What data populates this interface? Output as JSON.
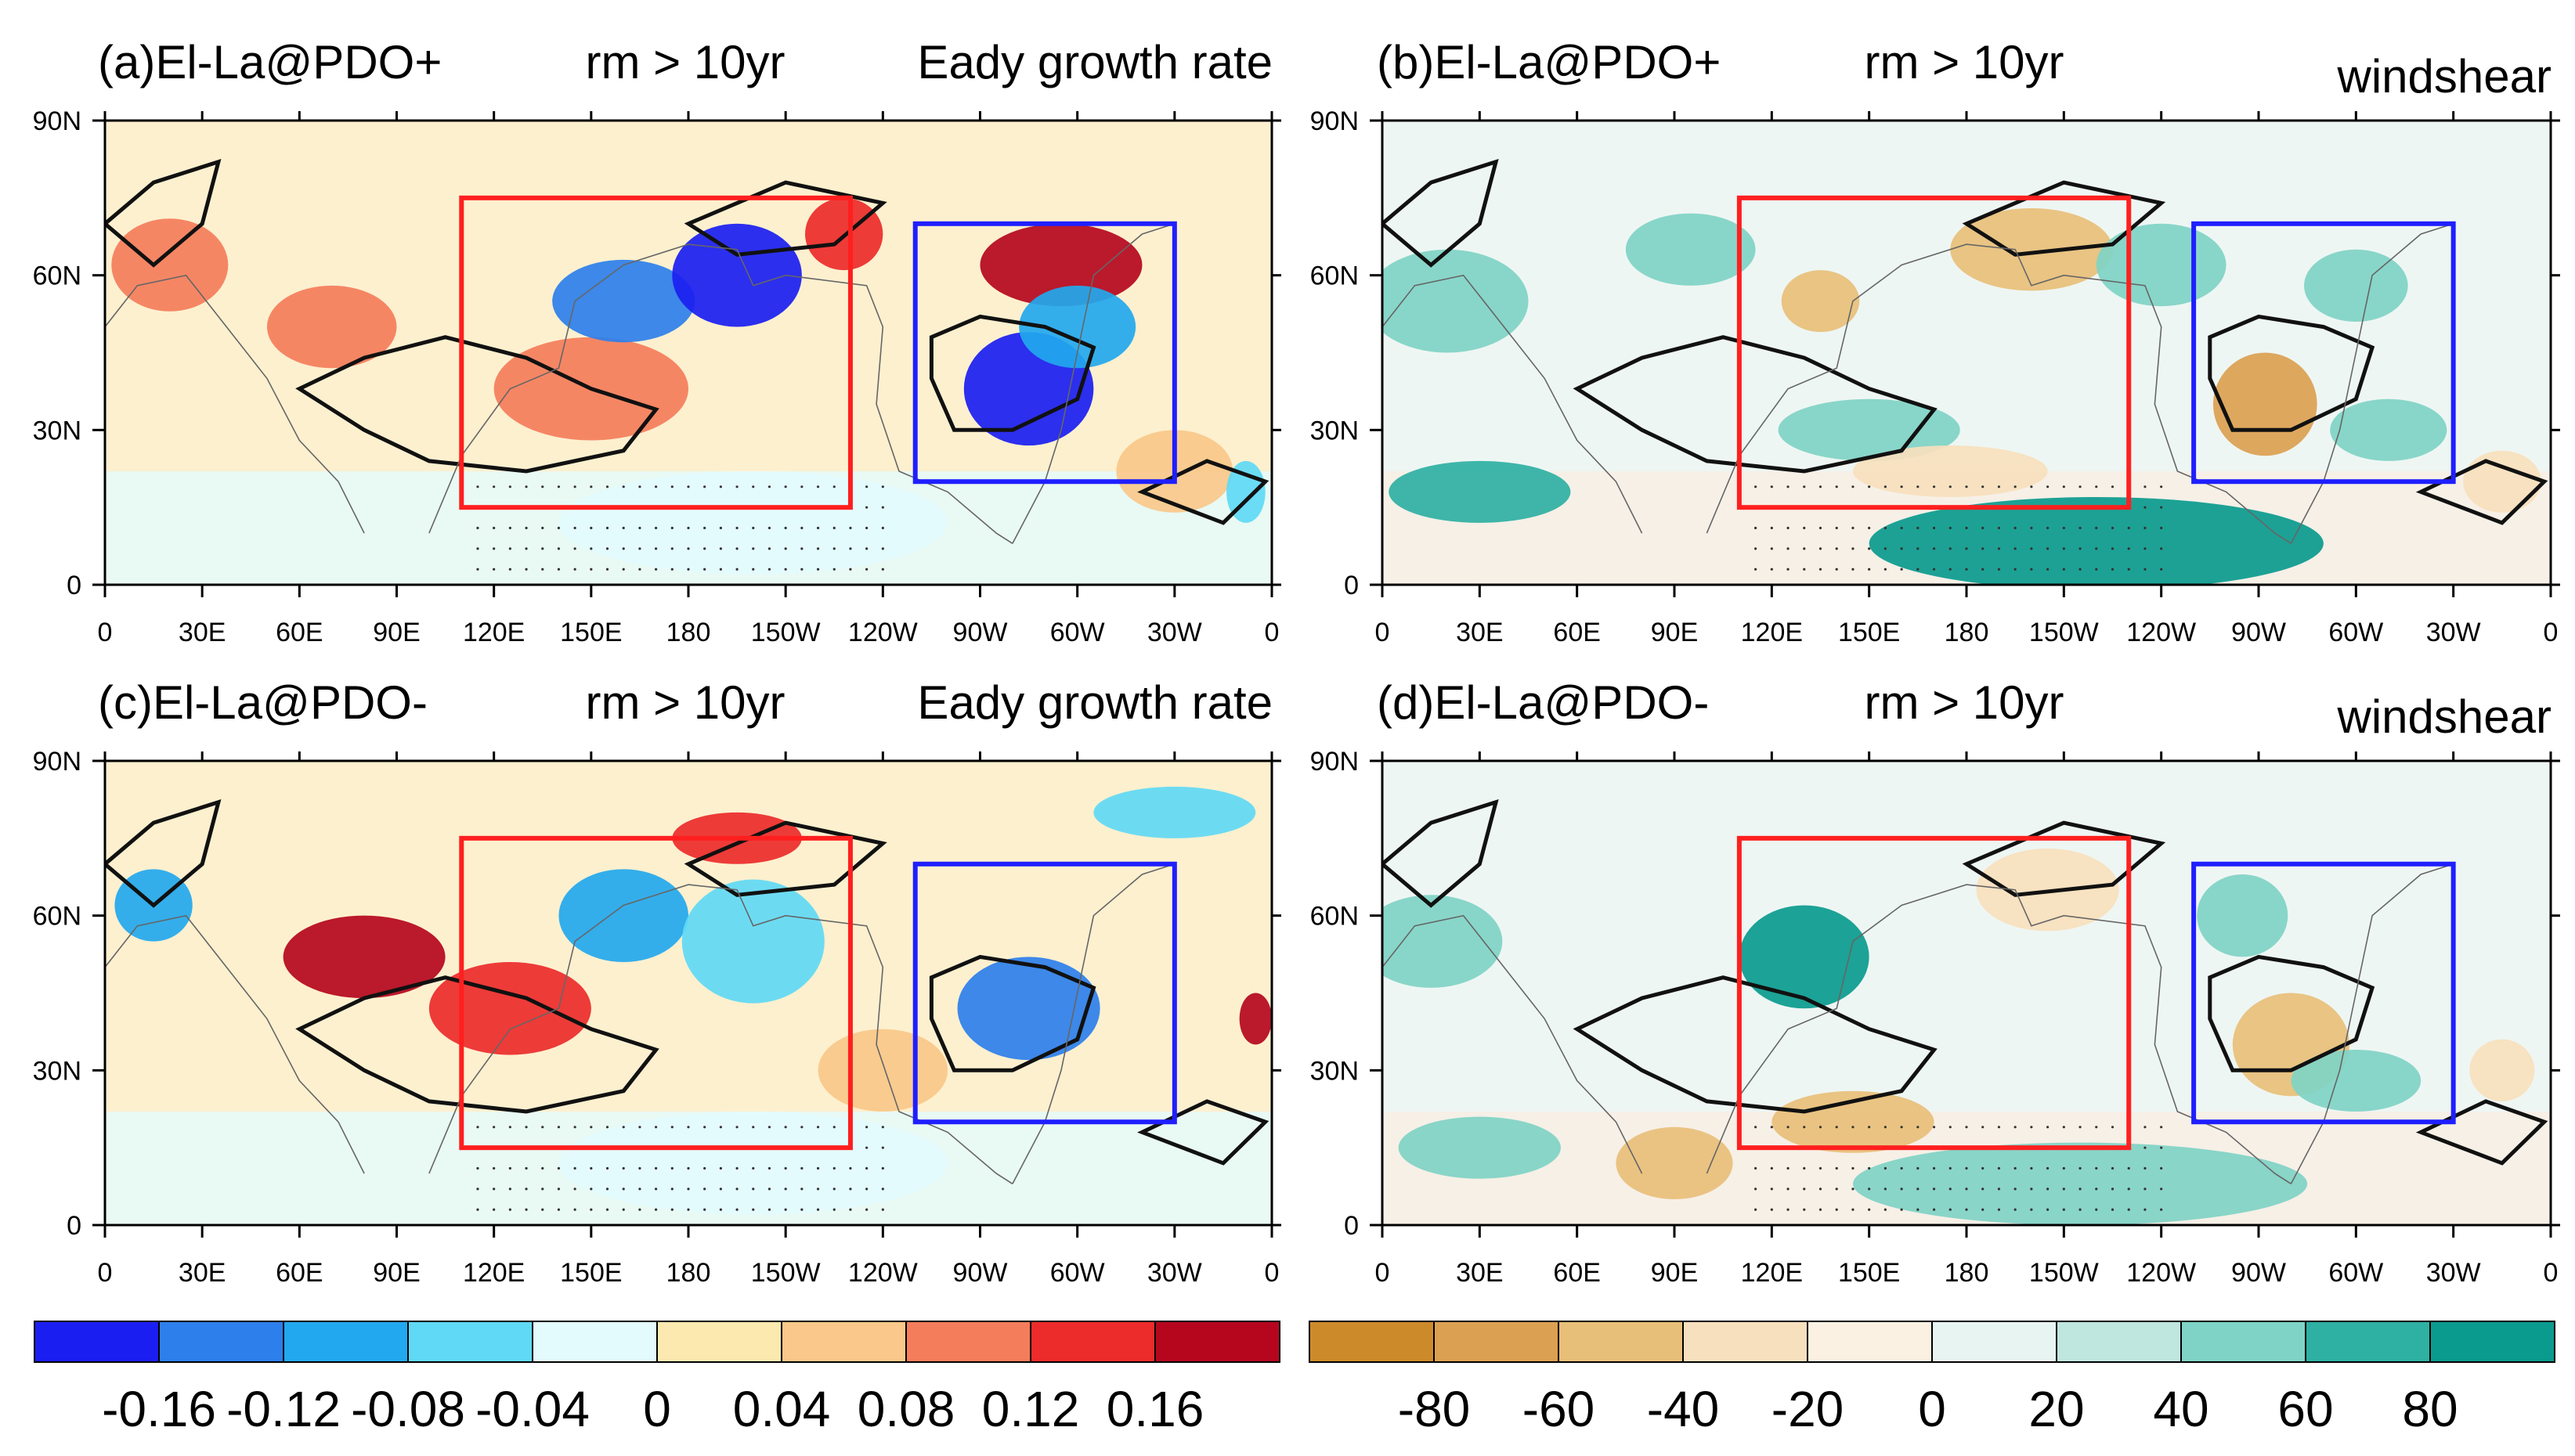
{
  "figure": {
    "panels": [
      {
        "id": "a",
        "title_left": "(a)El-La@PDO+",
        "title_center": "rm > 10yr",
        "title_right": "Eady growth rate",
        "variable": "eady",
        "fields": [
          {
            "lon": 20,
            "lat": 62,
            "rx": 18,
            "ry": 9,
            "v": 0.1
          },
          {
            "lon": 70,
            "lat": 50,
            "rx": 20,
            "ry": 8,
            "v": 0.08
          },
          {
            "lon": 150,
            "lat": 38,
            "rx": 30,
            "ry": 10,
            "v": 0.1
          },
          {
            "lon": 160,
            "lat": 55,
            "rx": 22,
            "ry": 8,
            "v": -0.14
          },
          {
            "lon": 195,
            "lat": 60,
            "rx": 20,
            "ry": 10,
            "v": -0.18
          },
          {
            "lon": 228,
            "lat": 68,
            "rx": 12,
            "ry": 7,
            "v": 0.14
          },
          {
            "lon": 295,
            "lat": 62,
            "rx": 25,
            "ry": 8,
            "v": 0.16
          },
          {
            "lon": 285,
            "lat": 38,
            "rx": 20,
            "ry": 11,
            "v": -0.2
          },
          {
            "lon": 300,
            "lat": 50,
            "rx": 18,
            "ry": 8,
            "v": -0.12
          },
          {
            "lon": 200,
            "lat": 12,
            "rx": 60,
            "ry": 10,
            "v": -0.02
          },
          {
            "lon": 330,
            "lat": 22,
            "rx": 18,
            "ry": 8,
            "v": 0.04
          },
          {
            "lon": 352,
            "lat": 18,
            "rx": 6,
            "ry": 6,
            "v": -0.08
          }
        ]
      },
      {
        "id": "b",
        "title_left": "(b)El-La@PDO+",
        "title_center": "rm > 10yr",
        "title_right": "windshear",
        "variable": "windshear",
        "fields": [
          {
            "lon": 20,
            "lat": 55,
            "rx": 25,
            "ry": 10,
            "v": 40
          },
          {
            "lon": 30,
            "lat": 18,
            "rx": 28,
            "ry": 6,
            "v": 70
          },
          {
            "lon": 95,
            "lat": 65,
            "rx": 20,
            "ry": 7,
            "v": 40
          },
          {
            "lon": 135,
            "lat": 55,
            "rx": 12,
            "ry": 6,
            "v": -60
          },
          {
            "lon": 200,
            "lat": 65,
            "rx": 25,
            "ry": 8,
            "v": -50
          },
          {
            "lon": 150,
            "lat": 30,
            "rx": 28,
            "ry": 6,
            "v": 40
          },
          {
            "lon": 175,
            "lat": 22,
            "rx": 30,
            "ry": 5,
            "v": -40
          },
          {
            "lon": 220,
            "lat": 8,
            "rx": 70,
            "ry": 9,
            "v": 80
          },
          {
            "lon": 240,
            "lat": 62,
            "rx": 20,
            "ry": 8,
            "v": 50
          },
          {
            "lon": 272,
            "lat": 35,
            "rx": 16,
            "ry": 10,
            "v": -70
          },
          {
            "lon": 310,
            "lat": 30,
            "rx": 18,
            "ry": 6,
            "v": 50
          },
          {
            "lon": 300,
            "lat": 58,
            "rx": 16,
            "ry": 7,
            "v": 40
          },
          {
            "lon": 345,
            "lat": 20,
            "rx": 12,
            "ry": 6,
            "v": -40
          }
        ]
      },
      {
        "id": "c",
        "title_left": "(c)El-La@PDO-",
        "title_center": "rm > 10yr",
        "title_right": "Eady growth rate",
        "variable": "eady",
        "fields": [
          {
            "lon": 15,
            "lat": 62,
            "rx": 12,
            "ry": 7,
            "v": -0.12
          },
          {
            "lon": 80,
            "lat": 52,
            "rx": 25,
            "ry": 8,
            "v": 0.16
          },
          {
            "lon": 125,
            "lat": 42,
            "rx": 25,
            "ry": 9,
            "v": 0.14
          },
          {
            "lon": 160,
            "lat": 60,
            "rx": 20,
            "ry": 9,
            "v": -0.1
          },
          {
            "lon": 200,
            "lat": 55,
            "rx": 22,
            "ry": 12,
            "v": -0.08
          },
          {
            "lon": 195,
            "lat": 75,
            "rx": 20,
            "ry": 5,
            "v": 0.12
          },
          {
            "lon": 285,
            "lat": 42,
            "rx": 22,
            "ry": 10,
            "v": -0.14
          },
          {
            "lon": 330,
            "lat": 80,
            "rx": 25,
            "ry": 5,
            "v": -0.08
          },
          {
            "lon": 240,
            "lat": 30,
            "rx": 20,
            "ry": 8,
            "v": 0.06
          },
          {
            "lon": 355,
            "lat": 40,
            "rx": 5,
            "ry": 5,
            "v": 0.16
          },
          {
            "lon": 200,
            "lat": 12,
            "rx": 60,
            "ry": 10,
            "v": -0.02
          }
        ]
      },
      {
        "id": "d",
        "title_left": "(d)El-La@PDO-",
        "title_center": "rm > 10yr",
        "title_right": "windshear",
        "variable": "windshear",
        "fields": [
          {
            "lon": 15,
            "lat": 55,
            "rx": 22,
            "ry": 9,
            "v": 50
          },
          {
            "lon": 30,
            "lat": 15,
            "rx": 25,
            "ry": 6,
            "v": 50
          },
          {
            "lon": 90,
            "lat": 12,
            "rx": 18,
            "ry": 7,
            "v": -60
          },
          {
            "lon": 130,
            "lat": 52,
            "rx": 20,
            "ry": 10,
            "v": 80
          },
          {
            "lon": 145,
            "lat": 20,
            "rx": 25,
            "ry": 6,
            "v": -50
          },
          {
            "lon": 205,
            "lat": 65,
            "rx": 22,
            "ry": 8,
            "v": -40
          },
          {
            "lon": 215,
            "lat": 8,
            "rx": 70,
            "ry": 8,
            "v": 50
          },
          {
            "lon": 265,
            "lat": 60,
            "rx": 14,
            "ry": 8,
            "v": 40
          },
          {
            "lon": 280,
            "lat": 35,
            "rx": 18,
            "ry": 10,
            "v": -60
          },
          {
            "lon": 300,
            "lat": 28,
            "rx": 20,
            "ry": 6,
            "v": 50
          },
          {
            "lon": 345,
            "lat": 30,
            "rx": 10,
            "ry": 6,
            "v": -30
          }
        ]
      }
    ],
    "x_ticks": [
      "0",
      "30E",
      "60E",
      "90E",
      "120E",
      "150E",
      "180",
      "150W",
      "120W",
      "90W",
      "60W",
      "30W",
      "0"
    ],
    "y_ticks": [
      "0",
      "30N",
      "60N",
      "90N"
    ],
    "boxes": [
      {
        "color": "#ff1f1f",
        "lon0": 110,
        "lon1": 230,
        "lat0": 15,
        "lat1": 75
      },
      {
        "color": "#1f1fff",
        "lon0": 250,
        "lon1": 330,
        "lat0": 20,
        "lat1": 70
      }
    ]
  },
  "colorbars": {
    "eady": {
      "labels": [
        "-0.16",
        "-0.12",
        "-0.08",
        "-0.04",
        "0",
        "0.04",
        "0.08",
        "0.12",
        "0.16"
      ],
      "colors": [
        "#1a1ef0",
        "#2d7fec",
        "#22a8ee",
        "#5fd9f5",
        "#e3fbfd",
        "#fbe9b0",
        "#f9c88a",
        "#f47d5b",
        "#ec2b2b",
        "#b5061e"
      ]
    },
    "windshear": {
      "labels": [
        "-80",
        "-60",
        "-40",
        "-20",
        "0",
        "20",
        "40",
        "60",
        "80"
      ],
      "colors": [
        "#cd8a2b",
        "#dba051",
        "#e8bf79",
        "#f7e0bd",
        "#fbf1e3",
        "#e8f4f1",
        "#bfe6df",
        "#7fd3c6",
        "#2eb0a3",
        "#0a9a8e"
      ]
    }
  },
  "chart_data": [
    {
      "type": "heatmap",
      "title": "(a)El-La@PDO+ rm > 10yr Eady growth rate",
      "xlabel": "",
      "ylabel": "",
      "x_range": [
        0,
        360
      ],
      "y_range": [
        0,
        90
      ],
      "color_levels": [
        -0.16,
        -0.12,
        -0.08,
        -0.04,
        0,
        0.04,
        0.08,
        0.12,
        0.16
      ]
    },
    {
      "type": "heatmap",
      "title": "(b)El-La@PDO+ rm > 10yr windshear",
      "xlabel": "",
      "ylabel": "",
      "x_range": [
        0,
        360
      ],
      "y_range": [
        0,
        90
      ],
      "color_levels": [
        -80,
        -60,
        -40,
        -20,
        0,
        20,
        40,
        60,
        80
      ]
    },
    {
      "type": "heatmap",
      "title": "(c)El-La@PDO- rm > 10yr Eady growth rate",
      "xlabel": "",
      "ylabel": "",
      "x_range": [
        0,
        360
      ],
      "y_range": [
        0,
        90
      ],
      "color_levels": [
        -0.16,
        -0.12,
        -0.08,
        -0.04,
        0,
        0.04,
        0.08,
        0.12,
        0.16
      ]
    },
    {
      "type": "heatmap",
      "title": "(d)El-La@PDO- rm > 10yr windshear",
      "xlabel": "",
      "ylabel": "",
      "x_range": [
        0,
        360
      ],
      "y_range": [
        0,
        90
      ],
      "color_levels": [
        -80,
        -60,
        -40,
        -20,
        0,
        20,
        40,
        60,
        80
      ]
    }
  ]
}
